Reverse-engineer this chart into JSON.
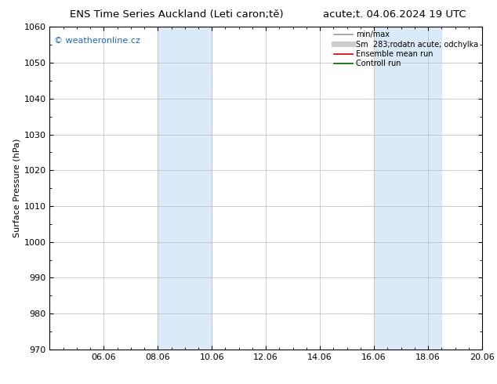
{
  "title_left": "ENS Time Series Auckland (Leti caron;tě)",
  "title_right": "acute;t. 04.06.2024 19 UTC",
  "ylabel": "Surface Pressure (hPa)",
  "ylim": [
    970,
    1060
  ],
  "yticks": [
    970,
    980,
    990,
    1000,
    1010,
    1020,
    1030,
    1040,
    1050,
    1060
  ],
  "x_min": 0,
  "x_max": 16,
  "xtick_labels": [
    "06.06",
    "08.06",
    "10.06",
    "12.06",
    "14.06",
    "16.06",
    "18.06",
    "20.06"
  ],
  "xtick_positions": [
    2,
    4,
    6,
    8,
    10,
    12,
    14,
    16
  ],
  "shade_regions": [
    {
      "x_start": 4,
      "x_end": 6
    },
    {
      "x_start": 12,
      "x_end": 14.5
    }
  ],
  "shade_color": "#daeaf8",
  "watermark_text": "© weatheronline.cz",
  "watermark_color": "#1a66cc",
  "legend_entries": [
    {
      "label": "min/max",
      "color": "#999999",
      "lw": 1.2,
      "ls": "-"
    },
    {
      "label": "Sm  283;rodatn acute; odchylka",
      "color": "#cccccc",
      "lw": 5,
      "ls": "-"
    },
    {
      "label": "Ensemble mean run",
      "color": "#cc0000",
      "lw": 1.2,
      "ls": "-"
    },
    {
      "label": "Controll run",
      "color": "#006600",
      "lw": 1.2,
      "ls": "-"
    }
  ],
  "bg_color": "#ffffff",
  "plot_bg_color": "#ffffff",
  "border_color": "#000000",
  "title_fontsize": 9.5,
  "axis_label_fontsize": 8,
  "tick_fontsize": 8,
  "legend_fontsize": 7,
  "watermark_fontsize": 8
}
